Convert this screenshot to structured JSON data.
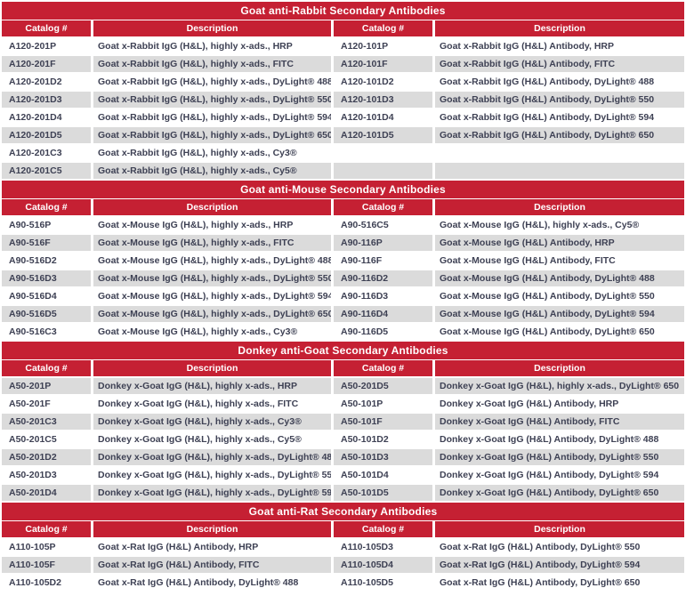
{
  "colors": {
    "accent": "#c52033",
    "stripe": "#dbdbdb",
    "text": "#3e4154",
    "header_text": "#ffffff"
  },
  "columns": [
    "Catalog #",
    "Description",
    "Catalog #",
    "Description"
  ],
  "sections": [
    {
      "title": "Goat anti-Rabbit Secondary Antibodies",
      "rows": [
        [
          "A120-201P",
          "Goat x-Rabbit IgG (H&L), highly x-ads., HRP",
          "A120-101P",
          "Goat x-Rabbit IgG (H&L) Antibody, HRP"
        ],
        [
          "A120-201F",
          "Goat x-Rabbit IgG (H&L), highly x-ads., FITC",
          "A120-101F",
          "Goat x-Rabbit IgG (H&L) Antibody, FITC"
        ],
        [
          "A120-201D2",
          "Goat x-Rabbit IgG (H&L), highly x-ads., DyLight® 488",
          "A120-101D2",
          "Goat x-Rabbit IgG (H&L) Antibody, DyLight® 488"
        ],
        [
          "A120-201D3",
          "Goat x-Rabbit IgG (H&L), highly x-ads., DyLight® 550",
          "A120-101D3",
          "Goat x-Rabbit IgG (H&L) Antibody, DyLight® 550"
        ],
        [
          "A120-201D4",
          "Goat x-Rabbit IgG (H&L), highly x-ads., DyLight® 594",
          "A120-101D4",
          "Goat x-Rabbit IgG (H&L) Antibody, DyLight® 594"
        ],
        [
          "A120-201D5",
          "Goat x-Rabbit IgG (H&L), highly x-ads., DyLight® 650",
          "A120-101D5",
          "Goat x-Rabbit IgG (H&L) Antibody, DyLight® 650"
        ],
        [
          "A120-201C3",
          "Goat x-Rabbit IgG (H&L), highly x-ads., Cy3®",
          "",
          ""
        ],
        [
          "A120-201C5",
          "Goat x-Rabbit IgG (H&L), highly x-ads., Cy5®",
          "",
          ""
        ]
      ]
    },
    {
      "title": "Goat anti-Mouse Secondary Antibodies",
      "rows": [
        [
          "A90-516P",
          "Goat x-Mouse IgG (H&L), highly x-ads., HRP",
          "A90-516C5",
          "Goat x-Mouse IgG (H&L), highly x-ads., Cy5®"
        ],
        [
          "A90-516F",
          "Goat x-Mouse IgG (H&L), highly x-ads., FITC",
          "A90-116P",
          "Goat x-Mouse IgG (H&L) Antibody, HRP"
        ],
        [
          "A90-516D2",
          "Goat x-Mouse IgG (H&L), highly x-ads., DyLight® 488",
          "A90-116F",
          "Goat x-Mouse IgG (H&L) Antibody, FITC"
        ],
        [
          "A90-516D3",
          "Goat x-Mouse IgG (H&L), highly x-ads., DyLight® 550",
          "A90-116D2",
          "Goat x-Mouse IgG (H&L) Antibody, DyLight® 488"
        ],
        [
          "A90-516D4",
          "Goat x-Mouse IgG (H&L), highly x-ads., DyLight® 594",
          "A90-116D3",
          "Goat x-Mouse IgG (H&L) Antibody, DyLight® 550"
        ],
        [
          "A90-516D5",
          "Goat x-Mouse IgG (H&L), highly x-ads., DyLight® 650",
          "A90-116D4",
          "Goat x-Mouse IgG (H&L) Antibody, DyLight® 594"
        ],
        [
          "A90-516C3",
          "Goat x-Mouse IgG (H&L), highly x-ads., Cy3®",
          "A90-116D5",
          "Goat x-Mouse IgG (H&L) Antibody, DyLight® 650"
        ]
      ]
    },
    {
      "title": "Donkey anti-Goat Secondary Antibodies",
      "rows": [
        [
          "A50-201P",
          "Donkey x-Goat IgG (H&L), highly x-ads., HRP",
          "A50-201D5",
          "Donkey x-Goat IgG (H&L), highly x-ads., DyLight® 650"
        ],
        [
          "A50-201F",
          "Donkey x-Goat IgG (H&L), highly x-ads., FITC",
          "A50-101P",
          "Donkey x-Goat IgG (H&L) Antibody, HRP"
        ],
        [
          "A50-201C3",
          "Donkey x-Goat IgG (H&L), highly x-ads., Cy3®",
          "A50-101F",
          "Donkey x-Goat IgG (H&L) Antibody, FITC"
        ],
        [
          "A50-201C5",
          "Donkey x-Goat IgG (H&L), highly x-ads., Cy5®",
          "A50-101D2",
          "Donkey x-Goat IgG (H&L) Antibody, DyLight® 488"
        ],
        [
          "A50-201D2",
          "Donkey x-Goat IgG (H&L), highly x-ads., DyLight® 488",
          "A50-101D3",
          "Donkey x-Goat IgG (H&L) Antibody, DyLight® 550"
        ],
        [
          "A50-201D3",
          "Donkey x-Goat IgG (H&L), highly x-ads., DyLight® 550",
          "A50-101D4",
          "Donkey x-Goat IgG (H&L) Antibody, DyLight® 594"
        ],
        [
          "A50-201D4",
          "Donkey x-Goat IgG (H&L), highly x-ads., DyLight® 594",
          "A50-101D5",
          "Donkey x-Goat IgG (H&L) Antibody, DyLight® 650"
        ]
      ]
    },
    {
      "title": "Goat anti-Rat Secondary Antibodies",
      "rows": [
        [
          "A110-105P",
          "Goat x-Rat IgG (H&L) Antibody, HRP",
          "A110-105D3",
          "Goat x-Rat IgG (H&L) Antibody, DyLight® 550"
        ],
        [
          "A110-105F",
          "Goat x-Rat IgG (H&L) Antibody, FITC",
          "A110-105D4",
          "Goat x-Rat IgG (H&L) Antibody, DyLight® 594"
        ],
        [
          "A110-105D2",
          "Goat x-Rat IgG (H&L) Antibody, DyLight® 488",
          "A110-105D5",
          "Goat x-Rat IgG (H&L) Antibody, DyLight® 650"
        ]
      ]
    }
  ]
}
